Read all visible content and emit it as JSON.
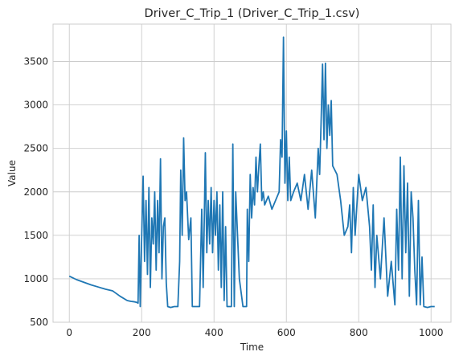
{
  "chart_data": {
    "type": "line",
    "title": "Driver_C_Trip_1 (Driver_C_Trip_1.csv)",
    "xlabel": "Time",
    "ylabel": "Value",
    "xlim": [
      -45,
      1055
    ],
    "ylim": [
      500,
      3930
    ],
    "xticks": [
      0,
      200,
      400,
      600,
      800,
      1000
    ],
    "yticks": [
      500,
      1000,
      1500,
      2000,
      2500,
      3000,
      3500
    ],
    "grid": true,
    "line_color": "#1f77b4",
    "series": [
      {
        "x": [
          0,
          20,
          40,
          60,
          80,
          100,
          120,
          140,
          160,
          170,
          180,
          185,
          190,
          193,
          196,
          200,
          204,
          208,
          212,
          216,
          220,
          224,
          228,
          232,
          236,
          240,
          244,
          248,
          252,
          256,
          260,
          264,
          268,
          272,
          280,
          290,
          300,
          305,
          308,
          312,
          316,
          320,
          324,
          330,
          336,
          340,
          350,
          360,
          366,
          370,
          376,
          380,
          384,
          388,
          392,
          396,
          400,
          404,
          408,
          412,
          416,
          420,
          424,
          428,
          432,
          436,
          440,
          444,
          448,
          452,
          456,
          460,
          470,
          480,
          490,
          492,
          496,
          500,
          504,
          508,
          512,
          516,
          520,
          524,
          528,
          532,
          536,
          540,
          550,
          560,
          570,
          580,
          584,
          588,
          592,
          596,
          600,
          604,
          608,
          612,
          620,
          630,
          640,
          650,
          660,
          670,
          680,
          688,
          692,
          696,
          700,
          704,
          708,
          712,
          716,
          720,
          724,
          728,
          740,
          750,
          760,
          770,
          775,
          780,
          785,
          790,
          800,
          810,
          820,
          830,
          835,
          840,
          845,
          850,
          860,
          870,
          880,
          890,
          900,
          905,
          910,
          915,
          920,
          925,
          930,
          935,
          940,
          945,
          950,
          955,
          960,
          965,
          970,
          975,
          980,
          990,
          1000,
          1010
        ],
        "y": [
          1030,
          990,
          960,
          930,
          905,
          880,
          860,
          800,
          750,
          740,
          735,
          730,
          720,
          1500,
          680,
          1480,
          2180,
          1200,
          1900,
          1050,
          2050,
          900,
          1700,
          1400,
          2000,
          1100,
          1900,
          1300,
          2380,
          1000,
          1600,
          1700,
          950,
          680,
          670,
          680,
          680,
          1200,
          2250,
          1500,
          2620,
          1900,
          2000,
          1450,
          1700,
          680,
          680,
          680,
          1800,
          900,
          2450,
          1300,
          1900,
          1400,
          2050,
          1300,
          1900,
          1500,
          2000,
          1100,
          1850,
          900,
          2000,
          750,
          1600,
          680,
          680,
          680,
          680,
          2550,
          680,
          2000,
          1000,
          680,
          680,
          1800,
          1200,
          2200,
          1700,
          2050,
          1850,
          2400,
          2000,
          2300,
          2550,
          1900,
          2000,
          1850,
          1950,
          1800,
          1900,
          2000,
          2600,
          2400,
          3780,
          2100,
          2700,
          1900,
          2400,
          1900,
          2000,
          2100,
          1900,
          2200,
          1800,
          2250,
          1700,
          2500,
          2200,
          2800,
          3470,
          2600,
          3480,
          2500,
          3000,
          2650,
          3050,
          2300,
          2200,
          1900,
          1500,
          1600,
          1850,
          1300,
          2050,
          1500,
          2200,
          1900,
          2050,
          1600,
          1100,
          1850,
          900,
          1500,
          1000,
          1700,
          800,
          1200,
          700,
          1800,
          1100,
          2400,
          1000,
          2300,
          1300,
          2100,
          800,
          2000,
          1700,
          1100,
          700,
          1900,
          700,
          1250,
          680,
          670,
          680,
          680
        ]
      }
    ]
  }
}
